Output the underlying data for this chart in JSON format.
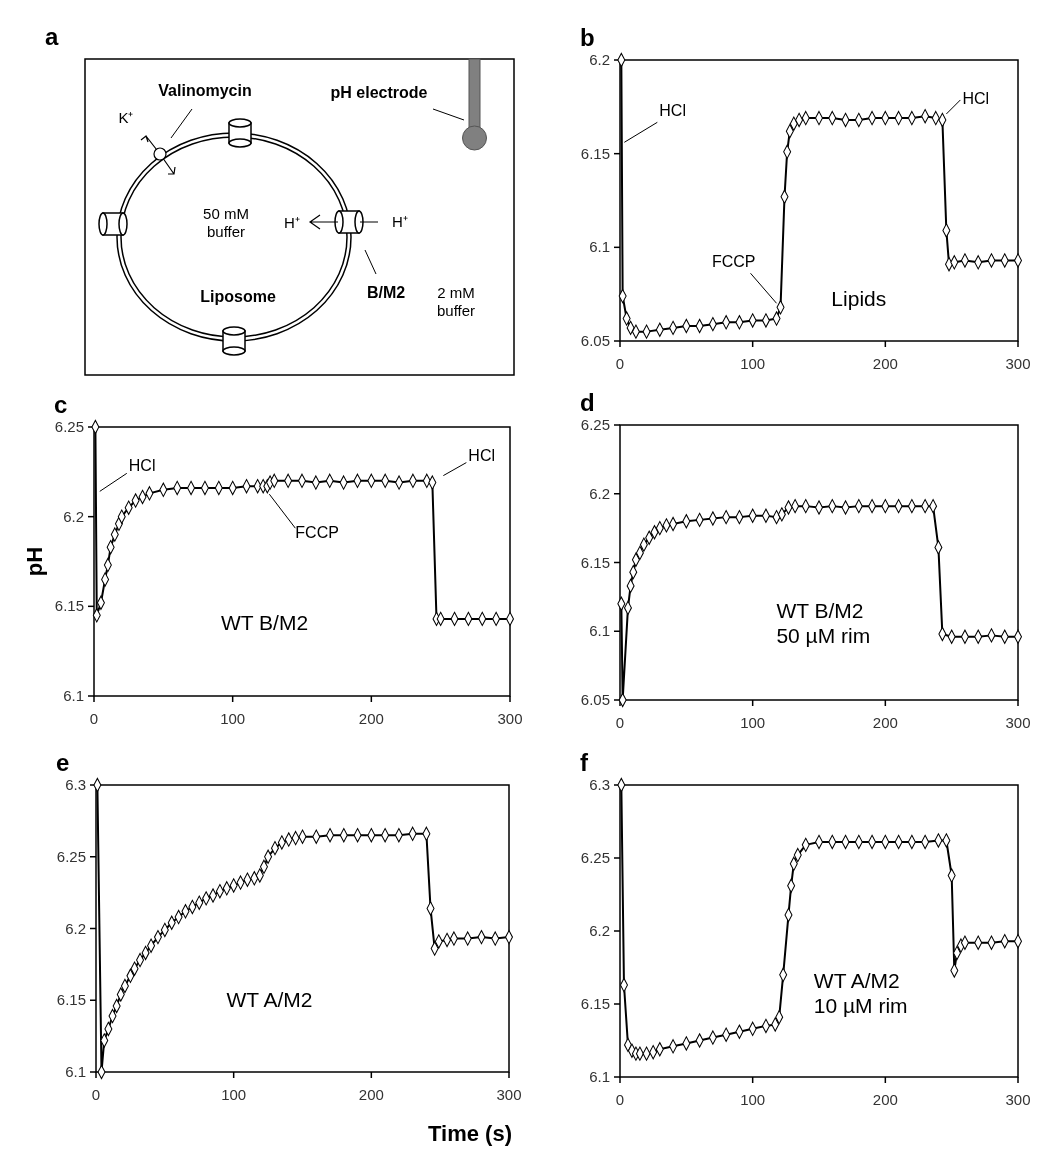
{
  "chart_data": [
    {
      "type": "other",
      "title": "a",
      "annotations": [
        "Valinomycin",
        "pH electrode",
        "K⁺",
        "50 mM\nbuffer",
        "H⁺",
        "H⁺",
        "Liposome",
        "B/M2",
        "2 mM\nbuffer"
      ]
    },
    {
      "type": "line",
      "title": "b",
      "xlim": [
        0,
        300
      ],
      "xticks": [
        0,
        100,
        200,
        300
      ],
      "ylim": [
        6.05,
        6.2
      ],
      "yticks": [
        6.05,
        6.1,
        6.15,
        6.2
      ],
      "marker": "diamond",
      "line_style": "solid",
      "x": [
        1,
        2,
        5,
        8,
        12,
        20,
        30,
        40,
        50,
        60,
        70,
        80,
        90,
        100,
        110,
        118,
        121,
        124,
        126,
        128,
        131,
        135,
        140,
        150,
        160,
        170,
        180,
        190,
        200,
        210,
        220,
        230,
        238,
        243,
        246,
        248,
        252,
        260,
        270,
        280,
        290,
        300
      ],
      "series": [
        {
          "color": "#000000",
          "values": [
            6.2,
            6.074,
            6.062,
            6.057,
            6.055,
            6.055,
            6.056,
            6.057,
            6.058,
            6.058,
            6.059,
            6.06,
            6.06,
            6.061,
            6.061,
            6.062,
            6.068,
            6.127,
            6.151,
            6.162,
            6.166,
            6.168,
            6.169,
            6.169,
            6.169,
            6.168,
            6.168,
            6.169,
            6.169,
            6.169,
            6.169,
            6.17,
            6.169,
            6.168,
            6.109,
            6.091,
            6.092,
            6.093,
            6.092,
            6.093,
            6.093,
            6.093
          ]
        }
      ],
      "annotations": [
        {
          "text": "HCl",
          "x": 1,
          "y": 6.155
        },
        {
          "text": "FCCP",
          "x": 121,
          "y": 6.068
        },
        {
          "text": "HCl",
          "x": 243,
          "y": 6.168
        },
        "Lipids"
      ]
    },
    {
      "type": "line",
      "title": "c",
      "ylabel": "pH",
      "xlim": [
        0,
        300
      ],
      "xticks": [
        0,
        100,
        200,
        300
      ],
      "ylim": [
        6.1,
        6.25
      ],
      "yticks": [
        6.1,
        6.15,
        6.2,
        6.25
      ],
      "marker": "diamond",
      "line_style": "solid",
      "x": [
        1,
        2,
        5,
        8,
        10,
        12,
        15,
        18,
        20,
        25,
        30,
        35,
        40,
        50,
        60,
        70,
        80,
        90,
        100,
        110,
        118,
        122,
        125,
        127,
        130,
        140,
        150,
        160,
        170,
        180,
        190,
        200,
        210,
        220,
        230,
        240,
        244,
        247,
        250,
        260,
        270,
        280,
        290,
        300
      ],
      "series": [
        {
          "color": "#000000",
          "values": [
            6.25,
            6.145,
            6.152,
            6.165,
            6.173,
            6.183,
            6.19,
            6.196,
            6.2,
            6.205,
            6.209,
            6.211,
            6.213,
            6.215,
            6.216,
            6.216,
            6.216,
            6.216,
            6.216,
            6.217,
            6.217,
            6.217,
            6.217,
            6.219,
            6.22,
            6.22,
            6.22,
            6.219,
            6.22,
            6.219,
            6.22,
            6.22,
            6.22,
            6.219,
            6.22,
            6.22,
            6.219,
            6.143,
            6.143,
            6.143,
            6.143,
            6.143,
            6.143,
            6.143
          ]
        }
      ],
      "annotations": [
        {
          "text": "HCl",
          "x": 2,
          "y": 6.213
        },
        {
          "text": "FCCP",
          "x": 125,
          "y": 6.217
        },
        {
          "text": "HCl",
          "x": 244,
          "y": 6.219
        },
        "WT B/M2"
      ]
    },
    {
      "type": "line",
      "title": "d",
      "xlim": [
        0,
        300
      ],
      "xticks": [
        0,
        100,
        200,
        300
      ],
      "ylim": [
        6.05,
        6.25
      ],
      "yticks": [
        6.05,
        6.1,
        6.15,
        6.2,
        6.25
      ],
      "marker": "diamond",
      "line_style": "solid",
      "x": [
        1,
        2,
        6,
        8,
        10,
        12,
        15,
        18,
        22,
        26,
        30,
        35,
        40,
        50,
        60,
        70,
        80,
        90,
        100,
        110,
        118,
        122,
        127,
        132,
        140,
        150,
        160,
        170,
        180,
        190,
        200,
        210,
        220,
        230,
        236,
        240,
        243,
        250,
        260,
        270,
        280,
        290,
        300
      ],
      "series": [
        {
          "color": "#000000",
          "values": [
            6.12,
            6.05,
            6.117,
            6.133,
            6.143,
            6.152,
            6.157,
            6.163,
            6.168,
            6.172,
            6.175,
            6.177,
            6.178,
            6.18,
            6.181,
            6.182,
            6.183,
            6.183,
            6.184,
            6.184,
            6.183,
            6.185,
            6.19,
            6.191,
            6.191,
            6.19,
            6.191,
            6.19,
            6.191,
            6.191,
            6.191,
            6.191,
            6.191,
            6.191,
            6.191,
            6.161,
            6.098,
            6.096,
            6.096,
            6.096,
            6.097,
            6.096,
            6.096
          ]
        }
      ],
      "annotations": [
        "WT B/M2\n50 µM rim"
      ]
    },
    {
      "type": "line",
      "title": "e",
      "xlim": [
        0,
        300
      ],
      "xticks": [
        0,
        100,
        200,
        300
      ],
      "ylim": [
        6.1,
        6.3
      ],
      "yticks": [
        6.1,
        6.15,
        6.2,
        6.25,
        6.3
      ],
      "marker": "diamond",
      "line_style": "solid",
      "x": [
        1,
        4,
        6,
        9,
        12,
        15,
        18,
        21,
        25,
        28,
        32,
        36,
        40,
        45,
        50,
        55,
        60,
        65,
        70,
        75,
        80,
        85,
        90,
        95,
        100,
        105,
        110,
        115,
        119,
        122,
        125,
        130,
        135,
        140,
        145,
        150,
        160,
        170,
        180,
        190,
        200,
        210,
        220,
        230,
        240,
        243,
        246,
        249,
        255,
        260,
        270,
        280,
        290,
        300
      ],
      "series": [
        {
          "color": "#000000",
          "values": [
            6.3,
            6.1,
            6.122,
            6.13,
            6.139,
            6.146,
            6.154,
            6.16,
            6.167,
            6.172,
            6.178,
            6.183,
            6.188,
            6.194,
            6.199,
            6.204,
            6.208,
            6.212,
            6.215,
            6.218,
            6.221,
            6.223,
            6.226,
            6.228,
            6.23,
            6.232,
            6.234,
            6.235,
            6.237,
            6.243,
            6.25,
            6.256,
            6.26,
            6.262,
            6.263,
            6.264,
            6.264,
            6.265,
            6.265,
            6.265,
            6.265,
            6.265,
            6.265,
            6.266,
            6.266,
            6.214,
            6.186,
            6.191,
            6.192,
            6.193,
            6.193,
            6.194,
            6.193,
            6.194
          ]
        }
      ],
      "annotations": [
        "WT A/M2"
      ]
    },
    {
      "type": "line",
      "title": "f",
      "xlabel": "Time (s)",
      "xlim": [
        0,
        300
      ],
      "xticks": [
        0,
        100,
        200,
        300
      ],
      "ylim": [
        6.1,
        6.3
      ],
      "yticks": [
        6.1,
        6.15,
        6.2,
        6.25,
        6.3
      ],
      "marker": "diamond",
      "line_style": "solid",
      "x": [
        1,
        3,
        6,
        9,
        12,
        15,
        20,
        25,
        30,
        40,
        50,
        60,
        70,
        80,
        90,
        100,
        110,
        117,
        120,
        123,
        127,
        129,
        131,
        134,
        140,
        150,
        160,
        170,
        180,
        190,
        200,
        210,
        220,
        230,
        240,
        246,
        250,
        252,
        254,
        257,
        260,
        270,
        280,
        290,
        300
      ],
      "series": [
        {
          "color": "#000000",
          "values": [
            6.3,
            6.163,
            6.122,
            6.118,
            6.116,
            6.116,
            6.116,
            6.117,
            6.119,
            6.121,
            6.123,
            6.125,
            6.127,
            6.129,
            6.131,
            6.133,
            6.135,
            6.136,
            6.141,
            6.17,
            6.211,
            6.231,
            6.246,
            6.252,
            6.259,
            6.261,
            6.261,
            6.261,
            6.261,
            6.261,
            6.261,
            6.261,
            6.261,
            6.261,
            6.262,
            6.262,
            6.238,
            6.173,
            6.185,
            6.19,
            6.192,
            6.192,
            6.192,
            6.193,
            6.193
          ]
        }
      ],
      "annotations": [
        "WT A/M2\n10 µM rim"
      ]
    }
  ]
}
